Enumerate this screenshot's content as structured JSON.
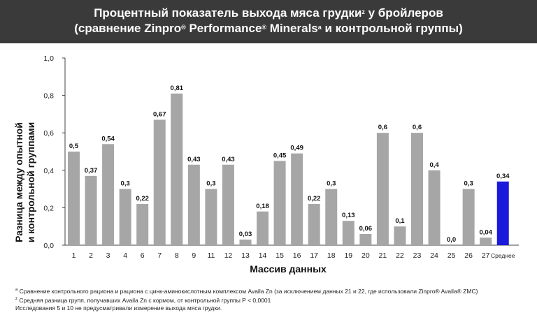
{
  "header": {
    "title_line1_pre": "Процентный показатель выхода мяса грудки",
    "title_line1_sup": "z",
    "title_line1_post": " у бройлеров",
    "title_line2_a": "(сравнение Zinpro",
    "title_line2_reg1": "®",
    "title_line2_b": " Performance",
    "title_line2_reg2": "®",
    "title_line2_c": " Minerals",
    "title_line2_sup": "a",
    "title_line2_d": " и контрольной группы)"
  },
  "chart_data": {
    "type": "bar",
    "xlabel": "Массив данных",
    "ylabel_line1": "Разница между опытной",
    "ylabel_line2": "и контрольной группами",
    "ylim": [
      0,
      1.0
    ],
    "yticks": [
      "0,0",
      "0,2",
      "0,4",
      "0,6",
      "0,8",
      "1,0"
    ],
    "categories": [
      "1",
      "2",
      "3",
      "4",
      "6",
      "7",
      "8",
      "9",
      "11",
      "12",
      "13",
      "14",
      "15",
      "16",
      "17",
      "18",
      "19",
      "20",
      "21",
      "22",
      "23",
      "24",
      "25",
      "26",
      "27",
      "Среднее"
    ],
    "values": [
      0.5,
      0.37,
      0.54,
      0.3,
      0.22,
      0.67,
      0.81,
      0.43,
      0.3,
      0.43,
      0.03,
      0.18,
      0.45,
      0.49,
      0.22,
      0.3,
      0.13,
      0.06,
      0.6,
      0.1,
      0.6,
      0.4,
      0.0,
      0.3,
      0.04,
      0.34
    ],
    "labels": [
      "0,5",
      "0,37",
      "0,54",
      "0,3",
      "0,22",
      "0,67",
      "0,81",
      "0,43",
      "0,3",
      "0,43",
      "0,03",
      "0,18",
      "0,45",
      "0,49",
      "0,22",
      "0,3",
      "0,13",
      "0,06",
      "0,6",
      "0,1",
      "0,6",
      "0,4",
      "0,0",
      "0,3",
      "0,04",
      "0,34"
    ],
    "bar_color": "#a6a6a6",
    "highlight_color": "#1a1adb",
    "highlight_index": 25,
    "grid": false
  },
  "footnotes": {
    "a_mark": "a",
    "a_text": " Сравнение контрольного рациона и рациона с цинк-аминокислотным комплексом Availa Zn (за исключением данных 21 и 22, где использовали Zinpro® Availa® ZMC)",
    "z_mark": "z",
    "z_text": "  Средняя разница групп, получавших Availa Zn с кормом, от контрольной группы P < 0,0001",
    "note": "Исследования 5 и 10 не предусматривали измерение выхода мяса грудки."
  }
}
